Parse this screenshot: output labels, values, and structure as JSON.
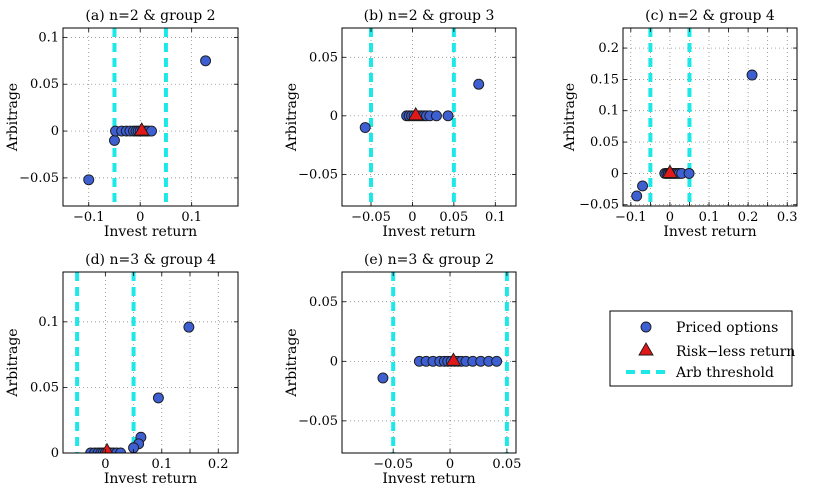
{
  "figure": {
    "legend": {
      "entries": [
        {
          "label": "Priced options",
          "marker": "circle",
          "color": "#3d5fd1"
        },
        {
          "label": "Risk−less return",
          "marker": "triangle",
          "color": "#e11818"
        },
        {
          "label": "Arb threshold",
          "marker": "dashed-line",
          "color": "#1ce8e8"
        }
      ]
    }
  },
  "chart_data": [
    {
      "type": "scatter",
      "title": "(a) n=2 & group 2",
      "xlabel": "Invest return",
      "ylabel": "Arbitrage",
      "xlim": [
        -0.15,
        0.19
      ],
      "ylim": [
        -0.08,
        0.11
      ],
      "xticks": [
        -0.1,
        0,
        0.1
      ],
      "xticklabels": [
        "−0.1",
        "0",
        "0.1"
      ],
      "yticks": [
        -0.05,
        0,
        0.05,
        0.1
      ],
      "yticklabels": [
        "−0.05",
        "0",
        "0.05",
        "0.1"
      ],
      "grid": true,
      "thresholds": [
        -0.05,
        0.05
      ],
      "riskless": [
        0.003,
        0.0
      ],
      "points": [
        [
          -0.1,
          -0.052
        ],
        [
          -0.05,
          -0.01
        ],
        [
          0.127,
          0.075
        ],
        [
          -0.048,
          0.0
        ],
        [
          -0.036,
          0.0
        ],
        [
          -0.027,
          0.0
        ],
        [
          -0.02,
          0.0
        ],
        [
          -0.013,
          0.0
        ],
        [
          -0.008,
          0.0
        ],
        [
          -0.004,
          0.0
        ],
        [
          0.0,
          0.0
        ],
        [
          0.004,
          0.0
        ],
        [
          0.008,
          0.0
        ],
        [
          0.012,
          0.0
        ],
        [
          0.016,
          0.0
        ],
        [
          0.022,
          0.0
        ]
      ]
    },
    {
      "type": "scatter",
      "title": "(b) n=2 & group 3",
      "xlabel": "Invest return",
      "ylabel": "Arbitrage",
      "xlim": [
        -0.085,
        0.125
      ],
      "ylim": [
        -0.077,
        0.075
      ],
      "xticks": [
        -0.05,
        0,
        0.05,
        0.1
      ],
      "xticklabels": [
        "−0.05",
        "0",
        "0.05",
        "0.1"
      ],
      "yticks": [
        -0.05,
        0,
        0.05
      ],
      "yticklabels": [
        "−0.05",
        "0",
        "0.05"
      ],
      "grid": true,
      "thresholds": [
        -0.05,
        0.05
      ],
      "riskless": [
        0.004,
        0.0
      ],
      "points": [
        [
          -0.057,
          -0.01
        ],
        [
          0.08,
          0.027
        ],
        [
          -0.007,
          0.0
        ],
        [
          -0.004,
          0.0
        ],
        [
          -0.001,
          0.0
        ],
        [
          0.002,
          0.0
        ],
        [
          0.005,
          0.0
        ],
        [
          0.008,
          0.0
        ],
        [
          0.011,
          0.0
        ],
        [
          0.014,
          0.0
        ],
        [
          0.017,
          0.0
        ],
        [
          0.021,
          0.0
        ],
        [
          0.029,
          0.0
        ],
        [
          0.043,
          0.0
        ]
      ]
    },
    {
      "type": "scatter",
      "title": "(c) n=2 & group 4",
      "xlabel": "Invest return",
      "ylabel": "Arbitrage",
      "xlim": [
        -0.12,
        0.325
      ],
      "ylim": [
        -0.052,
        0.232
      ],
      "xticks": [
        -0.1,
        -0.05,
        0,
        0.05,
        0.1,
        0.15,
        0.2,
        0.25,
        0.3
      ],
      "xticklabels": [
        "−0.1",
        "",
        "0",
        "",
        "0.1",
        "",
        "0.2",
        "",
        "0.3"
      ],
      "yticks": [
        -0.05,
        0,
        0.05,
        0.1,
        0.15,
        0.2
      ],
      "yticklabels": [
        "−0.05",
        "0",
        "0.05",
        "0.1",
        "0.15",
        "0.2"
      ],
      "grid": true,
      "thresholds": [
        -0.05,
        0.05
      ],
      "riskless": [
        0.0,
        0.0
      ],
      "points": [
        [
          -0.085,
          -0.036
        ],
        [
          -0.07,
          -0.02
        ],
        [
          0.21,
          0.157
        ],
        [
          -0.013,
          0.0
        ],
        [
          -0.008,
          0.0
        ],
        [
          -0.004,
          0.0
        ],
        [
          0.0,
          0.0
        ],
        [
          0.004,
          0.0
        ],
        [
          0.009,
          0.0
        ],
        [
          0.014,
          0.0
        ],
        [
          0.019,
          0.0
        ],
        [
          0.024,
          0.0
        ],
        [
          0.03,
          0.0
        ],
        [
          0.049,
          0.0
        ]
      ]
    },
    {
      "type": "scatter",
      "title": "(d) n=3 & group 4",
      "xlabel": "Invest return",
      "ylabel": "Arbitrage",
      "xlim": [
        -0.075,
        0.235
      ],
      "ylim": [
        0.0,
        0.138
      ],
      "xticks": [
        0,
        0.05,
        0.1,
        0.15,
        0.2
      ],
      "xticklabels": [
        "0",
        "",
        "0.1",
        "",
        "0.2"
      ],
      "yticks": [
        0,
        0.05,
        0.1
      ],
      "yticklabels": [
        "0",
        "0.05",
        "0.1"
      ],
      "grid": true,
      "thresholds": [
        -0.05,
        0.05
      ],
      "riskless": [
        0.003,
        0.001
      ],
      "points": [
        [
          0.148,
          0.096
        ],
        [
          0.094,
          0.042
        ],
        [
          0.063,
          0.012
        ],
        [
          0.059,
          0.007
        ],
        [
          0.05,
          0.004
        ],
        [
          -0.026,
          0.0
        ],
        [
          -0.019,
          0.0
        ],
        [
          -0.013,
          0.0
        ],
        [
          -0.008,
          0.0
        ],
        [
          -0.004,
          0.0
        ],
        [
          0.0,
          0.0
        ],
        [
          0.004,
          0.0
        ],
        [
          0.009,
          0.0
        ],
        [
          0.014,
          0.0
        ],
        [
          0.02,
          0.0
        ],
        [
          0.027,
          0.0
        ]
      ]
    },
    {
      "type": "scatter",
      "title": "(e) n=3 & group 2",
      "xlabel": "Invest return",
      "ylabel": "Arbitrage",
      "xlim": [
        -0.095,
        0.058
      ],
      "ylim": [
        -0.077,
        0.075
      ],
      "xticks": [
        -0.05,
        0,
        0.05
      ],
      "xticklabels": [
        "−0.05",
        "0",
        "0.05"
      ],
      "yticks": [
        -0.05,
        0,
        0.05
      ],
      "yticklabels": [
        "−0.05",
        "0",
        "0.05"
      ],
      "grid": true,
      "thresholds": [
        -0.05,
        0.05
      ],
      "riskless": [
        0.003,
        0.0
      ],
      "points": [
        [
          -0.059,
          -0.014
        ],
        [
          -0.027,
          0.0
        ],
        [
          -0.021,
          0.0
        ],
        [
          -0.015,
          0.0
        ],
        [
          -0.009,
          0.0
        ],
        [
          -0.005,
          0.0
        ],
        [
          -0.002,
          0.0
        ],
        [
          0.001,
          0.0
        ],
        [
          0.004,
          0.0
        ],
        [
          0.007,
          0.0
        ],
        [
          0.01,
          0.0
        ],
        [
          0.014,
          0.0
        ],
        [
          0.02,
          0.0
        ],
        [
          0.027,
          0.0
        ],
        [
          0.034,
          0.0
        ],
        [
          0.041,
          0.0
        ]
      ]
    }
  ]
}
